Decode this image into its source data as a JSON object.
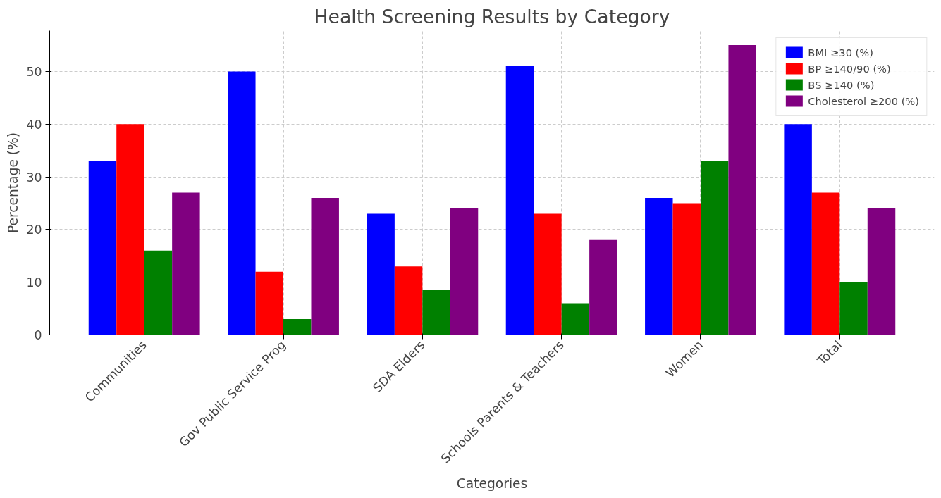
{
  "chart_data": {
    "type": "bar",
    "title": "Health Screening Results by Category",
    "xlabel": "Categories",
    "ylabel": "Percentage (%)",
    "categories": [
      "Communities",
      "Gov Public Service Prog",
      "SDA Elders",
      "Schools Parents & Teachers",
      "Women",
      "Total"
    ],
    "series": [
      {
        "name": "BMI ≥30 (%)",
        "color": "#0000ff",
        "values": [
          33,
          50,
          23,
          51,
          26,
          40
        ]
      },
      {
        "name": "BP ≥140/90 (%)",
        "color": "#ff0000",
        "values": [
          40,
          12,
          13,
          23,
          25,
          27
        ]
      },
      {
        "name": "BS ≥140 (%)",
        "color": "#008000",
        "values": [
          16,
          3,
          8.6,
          6,
          33,
          10
        ]
      },
      {
        "name": "Cholesterol ≥200 (%)",
        "color": "#800080",
        "values": [
          27,
          26,
          24,
          18,
          55,
          24
        ]
      }
    ],
    "ylim": [
      0,
      57.75
    ],
    "yticks": [
      0,
      10,
      20,
      30,
      40,
      50
    ],
    "grid": true,
    "legend": "top right"
  }
}
